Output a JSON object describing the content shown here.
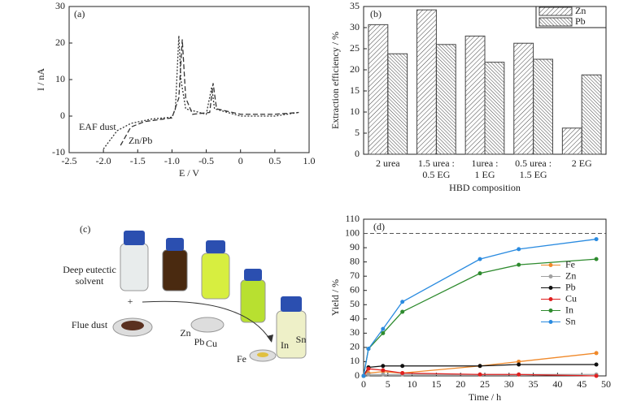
{
  "chart_data": [
    {
      "type": "line",
      "panel_label": "(a)",
      "xlabel": "E / V",
      "ylabel": "I / nA",
      "xlim": [
        -2.5,
        1.0
      ],
      "xticks": [
        -2.5,
        {
          "value": -2.0,
          "label": "-2.0"
        },
        -1.5,
        {
          "value": -1.0,
          "label": "-1.0"
        },
        -0.5,
        0,
        0.5,
        {
          "value": 1.0,
          "label": "1.0"
        }
      ],
      "ylim": [
        -10,
        30
      ],
      "yticks": [
        -10,
        0,
        10,
        20,
        30
      ],
      "annotations": [
        "EAF dust",
        "Zn/Pb"
      ],
      "markers": false,
      "series": [
        {
          "name": "EAF dust",
          "color": "#333333",
          "dash": "dotted",
          "x": [
            -2.0,
            -1.8,
            -1.6,
            -1.3,
            -1.0,
            -0.95,
            -0.9,
            -0.87,
            -0.8,
            -0.5,
            -0.42,
            -0.38,
            0,
            0.5,
            0.85
          ],
          "values": [
            -9,
            -4,
            -2,
            -0.8,
            -0.3,
            2,
            22,
            10,
            2,
            0.5,
            8,
            2,
            0,
            0,
            1
          ]
        },
        {
          "name": "Zn/Pb",
          "color": "#333333",
          "dash": "dashed",
          "x": [
            -1.75,
            -1.6,
            -1.4,
            -1.0,
            -0.9,
            -0.85,
            -0.8,
            -0.7,
            -0.45,
            -0.4,
            -0.35,
            0,
            0.5,
            0.85
          ],
          "values": [
            -8,
            -3,
            -1.5,
            -0.5,
            5,
            21,
            5,
            0.5,
            1,
            9,
            2,
            0.5,
            0.5,
            1
          ]
        }
      ]
    },
    {
      "type": "bar",
      "panel_label": "(b)",
      "xlabel": "HBD composition",
      "ylabel": "Extraction efficiency / %",
      "categories": [
        "2 urea",
        "1.5 urea :\n0.5 EG",
        "1urea :\n1 EG",
        "0.5 urea :\n1.5 EG",
        "2 EG"
      ],
      "ylim": [
        0,
        35
      ],
      "yticks": [
        0,
        5,
        10,
        15,
        20,
        25,
        30,
        35
      ],
      "legend": "upper right",
      "series": [
        {
          "name": "Zn",
          "color": "#444444",
          "values": [
            30.7,
            34.2,
            28.0,
            26.3,
            6.2
          ]
        },
        {
          "name": "Pb",
          "color": "#444444",
          "values": [
            23.8,
            26.0,
            21.8,
            22.5,
            18.8
          ]
        }
      ]
    },
    {
      "type": "line",
      "panel_label": "(d)",
      "xlabel": "Time / h",
      "ylabel": "Yield / %",
      "xlim": [
        0,
        50
      ],
      "xticks": [
        0,
        5,
        10,
        15,
        20,
        25,
        30,
        35,
        40,
        45,
        50
      ],
      "ylim": [
        0,
        110
      ],
      "yticks": [
        0,
        10,
        20,
        30,
        40,
        50,
        60,
        70,
        80,
        90,
        100,
        110
      ],
      "reference_line": 100,
      "legend": "center right",
      "markers": true,
      "series": [
        {
          "name": "Fe",
          "color": "#f0892a",
          "dash": "solid",
          "x": [
            0,
            1,
            4,
            8,
            24,
            32,
            48
          ],
          "values": [
            0,
            2,
            3,
            2,
            7,
            10,
            16
          ]
        },
        {
          "name": "Zn",
          "color": "#a0a0a0",
          "dash": "solid",
          "x": [
            0,
            1,
            4,
            8,
            24,
            32,
            48
          ],
          "values": [
            0,
            1,
            1,
            1,
            1,
            1,
            1
          ]
        },
        {
          "name": "Pb",
          "color": "#111111",
          "dash": "solid",
          "x": [
            0,
            1,
            4,
            8,
            24,
            32,
            48
          ],
          "values": [
            0,
            6,
            7,
            7,
            7,
            8,
            8
          ]
        },
        {
          "name": "Cu",
          "color": "#e02020",
          "dash": "solid",
          "x": [
            0,
            1,
            4,
            8,
            24,
            32,
            48
          ],
          "values": [
            0,
            5,
            4,
            2,
            1,
            1,
            0
          ]
        },
        {
          "name": "In",
          "color": "#2e8b2e",
          "dash": "solid",
          "x": [
            0,
            1,
            4,
            8,
            24,
            32,
            48
          ],
          "values": [
            0,
            19,
            30,
            45,
            72,
            78,
            82
          ]
        },
        {
          "name": "Sn",
          "color": "#2a8be0",
          "dash": "solid",
          "x": [
            0,
            1,
            4,
            8,
            24,
            32,
            48
          ],
          "values": [
            0,
            19,
            33,
            52,
            82,
            89,
            96
          ]
        }
      ]
    }
  ],
  "photo": {
    "panel_label": "(c)",
    "solvent": "Deep eutectic\nsolvent",
    "plus": "+",
    "dust": "Flue dust",
    "metals": [
      "Zn",
      "Pb",
      "Cu",
      "Fe",
      "In",
      "Sn"
    ]
  }
}
